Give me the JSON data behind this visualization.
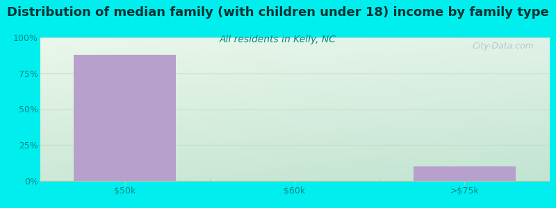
{
  "title": "Distribution of median family (with children under 18) income by family type",
  "subtitle": "All residents in Kelly, NC",
  "categories": [
    "$50k",
    "$60k",
    ">$75k"
  ],
  "values": [
    88,
    0,
    10
  ],
  "bar_color": "#b8a0cc",
  "title_fontsize": 13,
  "subtitle_fontsize": 10,
  "title_color": "#003333",
  "subtitle_color": "#008888",
  "tick_color": "#008888",
  "background_outer": "#00eeee",
  "ytick_labels": [
    "0%",
    "25%",
    "50%",
    "75%",
    "100%"
  ],
  "ytick_values": [
    0,
    25,
    50,
    75,
    100
  ],
  "ylim": [
    0,
    100
  ],
  "grid_color": "#c8ddc8",
  "watermark": "City-Data.com",
  "bg_top_left": "#eaf5ea",
  "bg_top_right": "#ddeedd",
  "bg_bottom_left": "#d4ecd4",
  "bg_bottom_right": "#c8e4d0"
}
